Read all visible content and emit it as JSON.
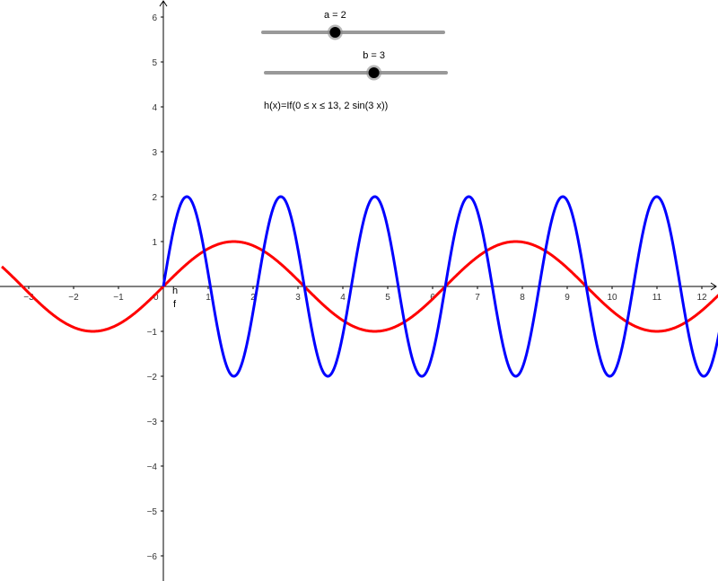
{
  "graphics_view": {
    "x_range": [
      -3.6,
      12.4
    ],
    "y_range": [
      -6.5,
      6.4
    ],
    "x_ticks": [
      -3,
      -2,
      -1,
      0,
      1,
      2,
      3,
      4,
      5,
      6,
      7,
      8,
      9,
      10,
      11,
      12
    ],
    "y_ticks": [
      -6,
      -5,
      -4,
      -3,
      -2,
      -1,
      1,
      2,
      3,
      4,
      5,
      6
    ],
    "origin_label": "0"
  },
  "sliders": [
    {
      "name": "a",
      "label": "a = 2",
      "value": 2,
      "min": 0,
      "max": 5
    },
    {
      "name": "b",
      "label": "b = 3",
      "value": 3,
      "min": 0,
      "max": 5
    }
  ],
  "functions": [
    {
      "name": "f",
      "label": "f",
      "color": "#ff0000",
      "expr": "sin(x)"
    },
    {
      "name": "h",
      "label": "h",
      "color": "#0000ff",
      "expr": "2 sin(3 x)",
      "domain": [
        0,
        13
      ]
    }
  ],
  "definition_text": "h(x)=If(0 ≤ x ≤ 13, 2 sin(3 x))",
  "colors": {
    "slider_track": "#999999",
    "slider_knob": "#000000",
    "axis": "#000000"
  }
}
